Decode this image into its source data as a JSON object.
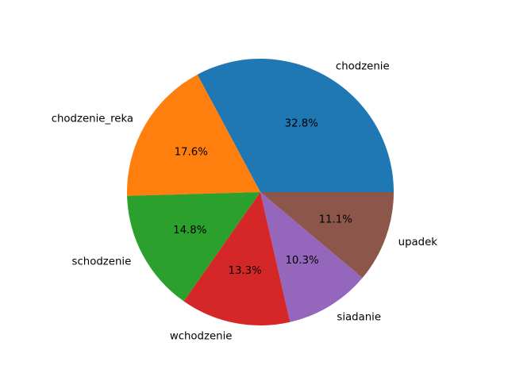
{
  "chart_data": {
    "type": "pie",
    "title": "",
    "start_angle_deg": 0,
    "direction": "counterclockwise",
    "labels": [
      "chodzenie",
      "chodzenie_reka",
      "schodzenie",
      "wchodzenie",
      "siadanie",
      "upadek"
    ],
    "values": [
      32.8,
      17.6,
      14.8,
      13.3,
      10.3,
      11.1
    ],
    "percent_labels": [
      "32.8%",
      "17.6%",
      "14.8%",
      "13.3%",
      "10.3%",
      "11.1%"
    ],
    "colors": [
      "#1f77b4",
      "#ff7f0e",
      "#2ca02c",
      "#d62728",
      "#9467bd",
      "#8c564b"
    ]
  }
}
